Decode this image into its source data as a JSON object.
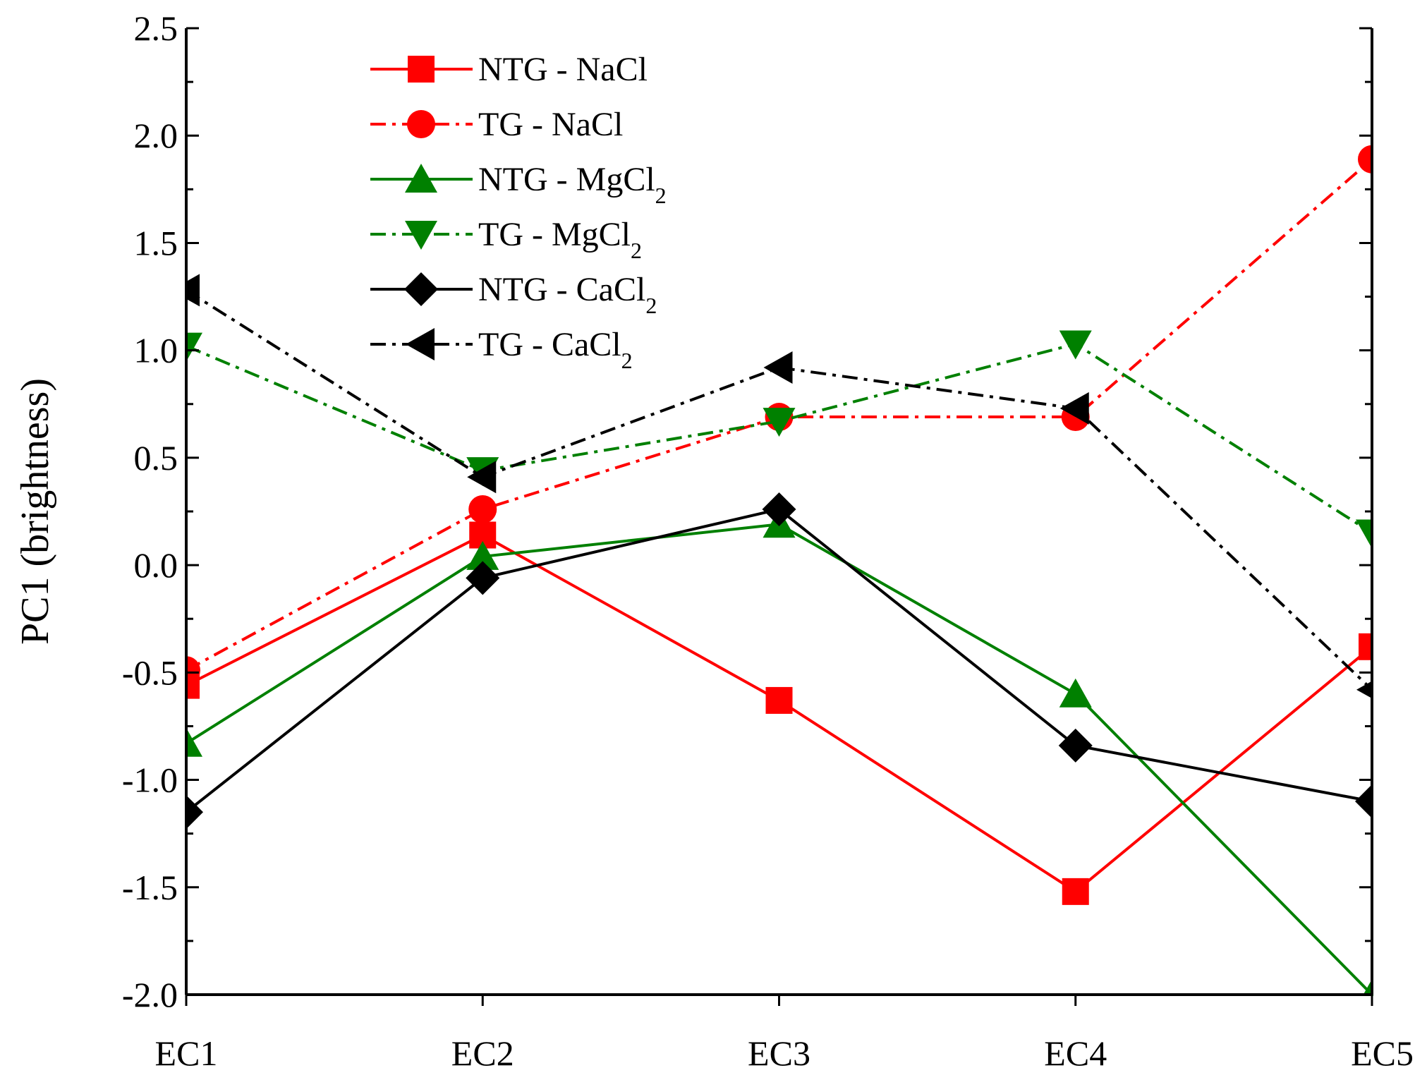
{
  "chart_data": {
    "type": "line",
    "title": "",
    "xlabel": "",
    "ylabel": "PC1 (brightness)",
    "categories": [
      "EC1",
      "EC2",
      "EC3",
      "EC4",
      "EC5"
    ],
    "ylim": [
      -2.0,
      2.5
    ],
    "yticks": [
      "2.5",
      "2.0",
      "1.5",
      "1.0",
      "0.5",
      "0.0",
      "-0.5",
      "-1.0",
      "-1.5",
      "-2.0"
    ],
    "grid": false,
    "legend_position": "top-center",
    "series": [
      {
        "name_main": "NTG - NaCl",
        "name_sub": "",
        "color": "#ff0000",
        "dash": "solid",
        "marker": "square",
        "values": [
          -0.56,
          0.14,
          -0.63,
          -1.52,
          -0.38
        ]
      },
      {
        "name_main": "TG - NaCl",
        "name_sub": "",
        "color": "#ff0000",
        "dash": "dashdot",
        "marker": "circle",
        "values": [
          -0.49,
          0.26,
          0.69,
          0.69,
          1.89
        ]
      },
      {
        "name_main": "NTG - MgCl",
        "name_sub": "2",
        "color": "#008000",
        "dash": "solid",
        "marker": "triangle-up",
        "values": [
          -0.83,
          0.04,
          0.19,
          -0.6,
          -2.0
        ]
      },
      {
        "name_main": "TG - MgCl",
        "name_sub": "2",
        "color": "#008000",
        "dash": "dashdot",
        "marker": "triangle-down",
        "values": [
          1.02,
          0.44,
          0.67,
          1.03,
          0.15
        ]
      },
      {
        "name_main": "NTG - CaCl",
        "name_sub": "2",
        "color": "#000000",
        "dash": "solid",
        "marker": "diamond",
        "values": [
          -1.15,
          -0.06,
          0.26,
          -0.84,
          -1.1
        ]
      },
      {
        "name_main": "TG - CaCl",
        "name_sub": "2",
        "color": "#000000",
        "dash": "dashdot",
        "marker": "triangle-left",
        "values": [
          1.28,
          0.41,
          0.92,
          0.73,
          -0.58
        ]
      }
    ]
  }
}
